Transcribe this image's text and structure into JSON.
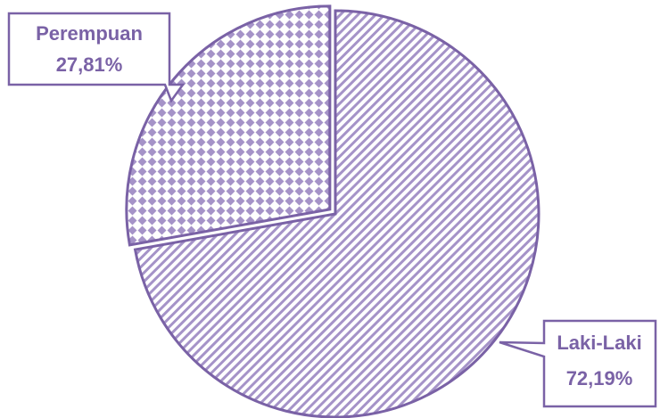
{
  "chart_data": {
    "type": "pie",
    "title": "",
    "slices": [
      {
        "label": "Laki-Laki",
        "value": 72.19,
        "value_label": "72,19%",
        "pattern": "diagonal-stripes"
      },
      {
        "label": "Perempuan",
        "value": 27.81,
        "value_label": "27,81%",
        "pattern": "diamond-checks",
        "exploded": true
      }
    ],
    "legend": "none",
    "colors": {
      "outline": "#7a62a6",
      "fill_pattern": "#a593c8",
      "text": "#7a62a6",
      "background": "#ffffff"
    }
  }
}
